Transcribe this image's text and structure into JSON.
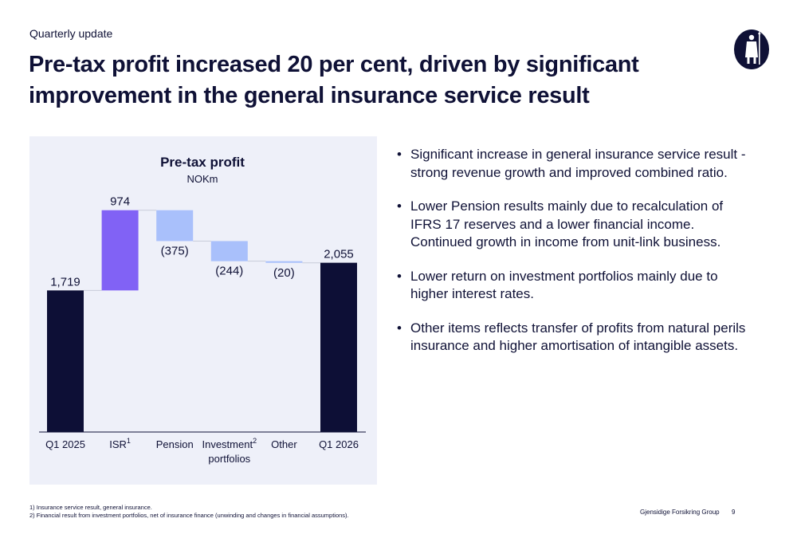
{
  "header": {
    "kicker": "Quarterly update",
    "title": "Pre-tax profit increased 20 per cent, driven by significant improvement in the general insurance service result"
  },
  "chart_data": {
    "type": "bar",
    "subtype": "waterfall",
    "title": "Pre-tax profit",
    "subtitle": "NOKm",
    "categories": [
      "Q1 2025",
      "ISR",
      "Pension",
      "Investment portfolios",
      "Other",
      "Q1 2026"
    ],
    "category_superscripts": [
      "",
      "1",
      "",
      "2",
      "",
      ""
    ],
    "values": [
      1719,
      974,
      -375,
      -244,
      -20,
      2055
    ],
    "value_labels": [
      "1,719",
      "974",
      "(375)",
      "(244)",
      "(20)",
      "2,055"
    ],
    "bar_kinds": [
      "total",
      "increase",
      "decrease",
      "decrease",
      "decrease",
      "total"
    ],
    "ylim": [
      0,
      3000
    ],
    "grid": false,
    "colors": {
      "total": "#0d0f36",
      "increase": "#8162f5",
      "decrease": "#a9c0fb",
      "connector": "#c8ccd9"
    }
  },
  "bullets": [
    "Significant increase in general insurance service result - strong revenue growth and improved combined ratio.",
    "Lower Pension results mainly due to recalculation of IFRS 17 reserves and a lower financial income. Continued  growth in income from unit-link business.",
    "Lower return on investment portfolios mainly due to higher interest rates.",
    "Other items reflects transfer of profits from natural perils insurance and higher amortisation of intangible assets."
  ],
  "footnotes": [
    "1) Insurance service result, general insurance.",
    "2) Financial result from investment portfolios, net of insurance finance (unwinding and changes in financial assumptions)."
  ],
  "footer": {
    "company": "Gjensidige Forsikring Group",
    "page": "9"
  },
  "logo": {
    "icon": "knight-icon"
  }
}
